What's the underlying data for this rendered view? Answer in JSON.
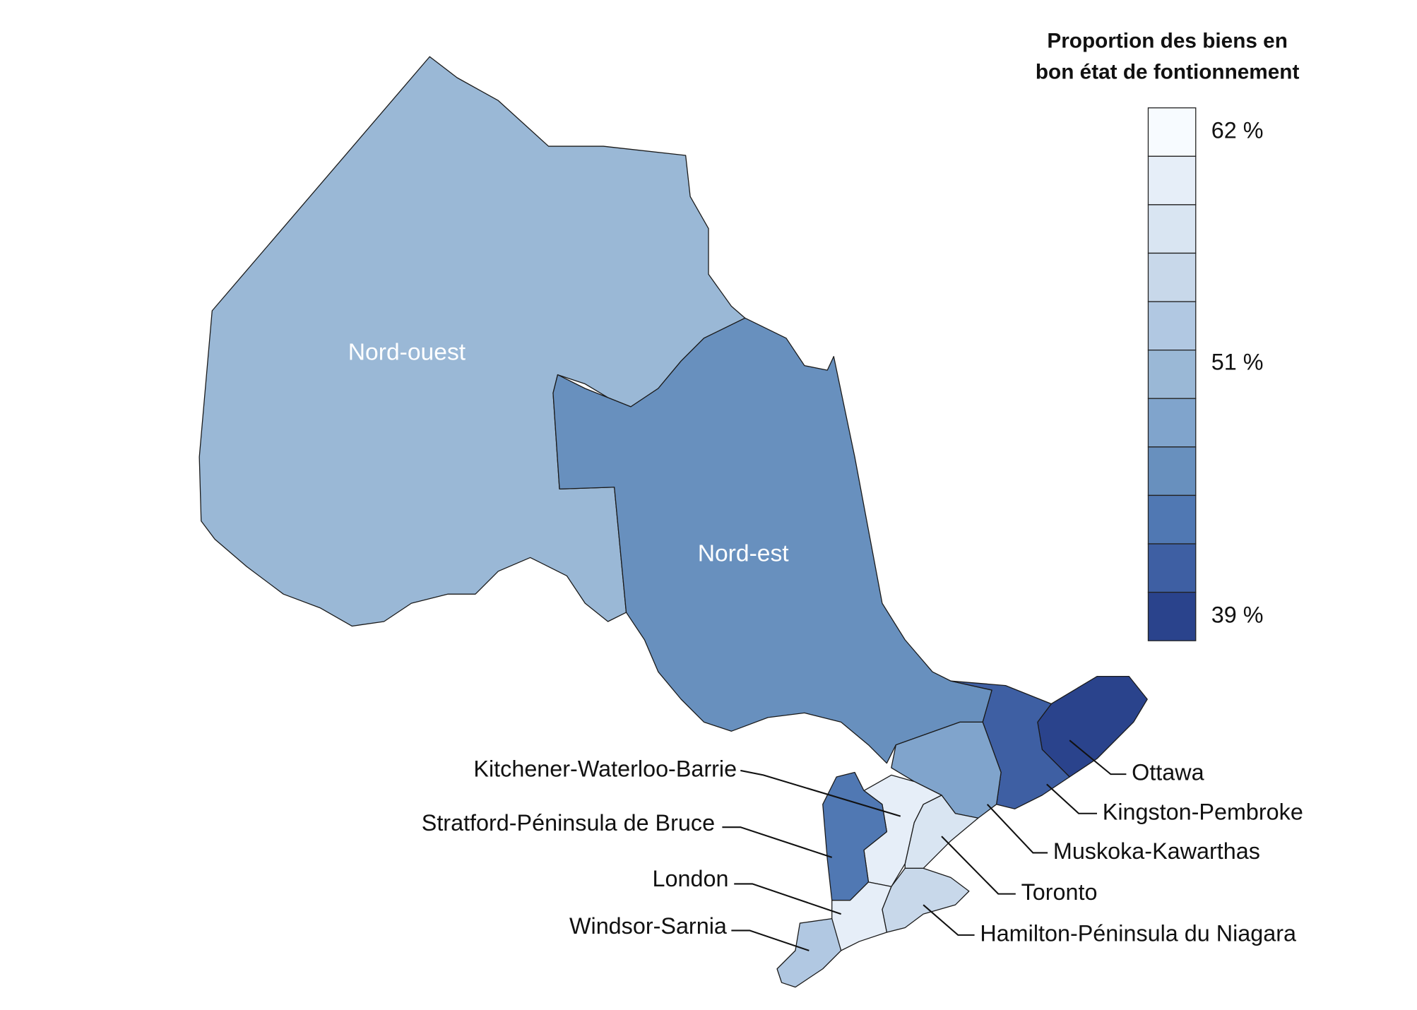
{
  "legend": {
    "title": [
      "Proportion des biens en",
      "bon état de fontionnement"
    ],
    "lim": [
      62,
      39
    ],
    "ticks": [
      {
        "value": 62,
        "label": "62 %"
      },
      {
        "value": 51,
        "label": "51 %"
      },
      {
        "value": 39,
        "label": "39 %"
      }
    ],
    "colors": [
      "#f7fbff",
      "#e6eef8",
      "#d9e5f2",
      "#c8d8ea",
      "#b1c8e2",
      "#9ab8d6",
      "#80a4cc",
      "#6890be",
      "#5078b3",
      "#3e5fa3",
      "#2a438c"
    ]
  },
  "regions": [
    {
      "name": "Nord-ouest",
      "value": 51
    },
    {
      "name": "Nord-est",
      "value": 46
    },
    {
      "name": "Ottawa",
      "value": 39
    },
    {
      "name": "Kingston-Pembroke",
      "value": 41
    },
    {
      "name": "Muskoka-Kawarthas",
      "value": 48
    },
    {
      "name": "Toronto",
      "value": 58
    },
    {
      "name": "Hamilton-Péninsula du Niagara",
      "value": 55
    },
    {
      "name": "Kitchener-Waterloo-Barrie",
      "value": 60
    },
    {
      "name": "Stratford-Péninsula de Bruce",
      "value": 44
    },
    {
      "name": "London",
      "value": 60
    },
    {
      "name": "Windsor-Sarnia",
      "value": 53
    }
  ]
}
